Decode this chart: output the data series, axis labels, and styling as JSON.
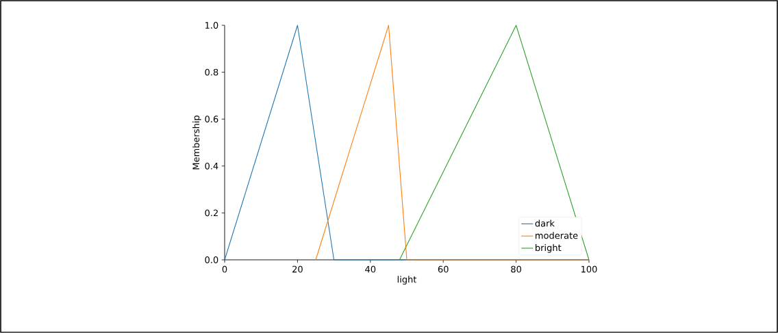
{
  "chart_data": {
    "type": "line",
    "xlabel": "light",
    "ylabel": "Membership",
    "xlim": [
      0,
      100
    ],
    "ylim": [
      0,
      1.0
    ],
    "xticks": [
      0,
      20,
      40,
      60,
      80,
      100
    ],
    "yticks": [
      {
        "value": 0,
        "label": "0.0"
      },
      {
        "value": 0.2,
        "label": "0.2"
      },
      {
        "value": 0.4,
        "label": "0.4"
      },
      {
        "value": 0.6,
        "label": "0.6"
      },
      {
        "value": 0.8,
        "label": "0.8"
      },
      {
        "value": 1.0,
        "label": "1.0"
      }
    ],
    "grid": false,
    "legend": "bottom right",
    "marker": "none",
    "line_style": "solid",
    "series": [
      {
        "name": "dark",
        "color": "#1f77b4",
        "x": [
          0,
          20,
          30,
          100
        ],
        "values": [
          0,
          1,
          0,
          0
        ]
      },
      {
        "name": "moderate",
        "color": "#ff7f0e",
        "x": [
          25,
          45,
          50,
          100
        ],
        "values": [
          0,
          1,
          0,
          0
        ]
      },
      {
        "name": "bright",
        "color": "#2ca02c",
        "x": [
          48,
          80,
          100
        ],
        "values": [
          0,
          1,
          0
        ]
      }
    ]
  }
}
